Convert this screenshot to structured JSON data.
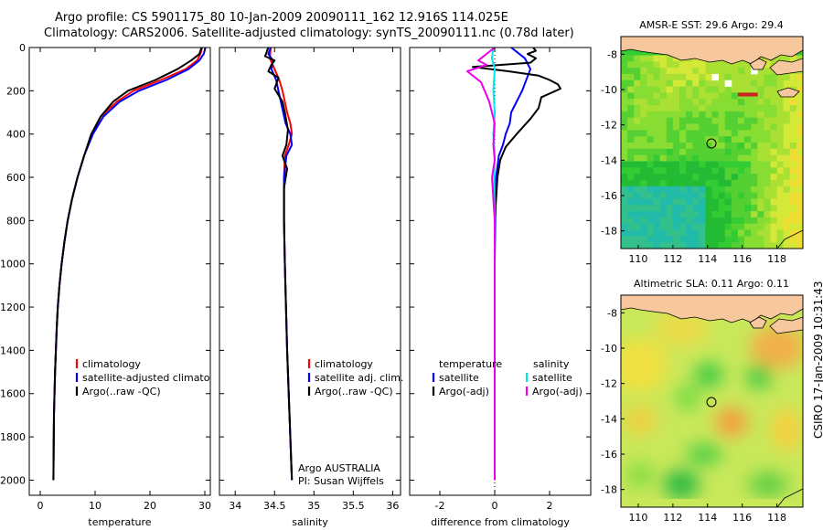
{
  "title": {
    "line1": "Argo profile: CS 5901175_80 10-Jan-2009 20090111_162 12.916S 114.025E",
    "line2": "Climatology: CARS2006. Satellite-adjusted climatology: synTS_20090111.nc (0.78d later)"
  },
  "side_label": "CSIRO 17-Jan-2009 10:31:43",
  "colors": {
    "red": "#ff0000",
    "blue": "#0000ff",
    "black": "#000000",
    "cyan": "#00e5ee",
    "magenta": "#ee00ee",
    "land": "#f7c79d"
  },
  "chart_data": [
    {
      "id": "temperature",
      "type": "line",
      "xlabel": "temperature",
      "ylabel": "",
      "xlim": [
        -2,
        31
      ],
      "ylim": [
        2070,
        0
      ],
      "xticks": [
        0,
        10,
        20,
        30
      ],
      "yticks": [
        0,
        200,
        400,
        600,
        800,
        1000,
        1200,
        1400,
        1600,
        1800,
        2000
      ],
      "legend": [
        "climatology",
        "satellite-adjusted climatology",
        "Argo(..raw -QC)"
      ],
      "series": [
        {
          "name": "climatology",
          "color": "red",
          "x": [
            29.5,
            29.2,
            28.6,
            26.5,
            22,
            17,
            14,
            11,
            9.5,
            8,
            6.8,
            5.8,
            5.0,
            4.4,
            3.9,
            3.5,
            3.2,
            3.0,
            2.7,
            2.5,
            2.4
          ],
          "y": [
            0,
            30,
            60,
            100,
            150,
            200,
            250,
            320,
            400,
            500,
            600,
            700,
            800,
            900,
            1000,
            1100,
            1200,
            1300,
            1500,
            1700,
            2000
          ]
        },
        {
          "name": "satellite-adjusted climatology",
          "color": "blue",
          "x": [
            30.1,
            29.8,
            29.0,
            27,
            23,
            18,
            14.5,
            11.5,
            9.6,
            8,
            6.8,
            5.8,
            5.0,
            4.4,
            3.9,
            3.5,
            3.2,
            3.0,
            2.7,
            2.5,
            2.4
          ],
          "y": [
            0,
            30,
            60,
            100,
            150,
            200,
            250,
            320,
            400,
            500,
            600,
            700,
            800,
            900,
            1000,
            1100,
            1200,
            1300,
            1500,
            1700,
            2000
          ]
        },
        {
          "name": "Argo(..raw -QC)",
          "color": "black",
          "x": [
            29.4,
            29.0,
            27.5,
            25,
            21,
            16,
            13.3,
            11,
            9.3,
            8,
            6.8,
            5.8,
            5.0,
            4.4,
            3.9,
            3.5,
            3.2,
            3.0,
            2.7,
            2.5,
            2.4
          ],
          "y": [
            0,
            30,
            60,
            100,
            150,
            200,
            250,
            320,
            400,
            500,
            600,
            700,
            800,
            900,
            1000,
            1100,
            1200,
            1300,
            1500,
            1700,
            2000
          ]
        }
      ]
    },
    {
      "id": "salinity",
      "type": "line",
      "xlabel": "salinity",
      "xlim": [
        33.8,
        36.1
      ],
      "ylim": [
        2070,
        0
      ],
      "xticks": [
        34,
        34.5,
        35,
        35.5,
        36
      ],
      "legend": [
        "climatology",
        "satellite adj. clim.",
        "Argo(..raw -QC)"
      ],
      "annotation": [
        "Argo AUSTRALIA",
        "PI: Susan Wijffels"
      ],
      "series": [
        {
          "name": "climatology",
          "color": "red",
          "x": [
            34.45,
            34.44,
            34.5,
            34.56,
            34.6,
            34.66,
            34.7,
            34.72,
            34.68,
            34.63,
            34.62,
            34.62,
            34.63,
            34.66,
            34.69,
            34.72
          ],
          "y": [
            0,
            50,
            100,
            150,
            200,
            300,
            350,
            400,
            450,
            500,
            600,
            800,
            1000,
            1400,
            1700,
            2000
          ]
        },
        {
          "name": "satellite adj. clim.",
          "color": "blue",
          "x": [
            34.45,
            34.42,
            34.48,
            34.46,
            34.52,
            34.58,
            34.64,
            34.7,
            34.72,
            34.65,
            34.62,
            34.62,
            34.63,
            34.66,
            34.69,
            34.72
          ],
          "y": [
            0,
            30,
            60,
            100,
            150,
            250,
            350,
            400,
            450,
            500,
            600,
            800,
            1000,
            1400,
            1700,
            2000
          ]
        },
        {
          "name": "Argo(..raw -QC)",
          "color": "black",
          "x": [
            34.42,
            34.4,
            34.38,
            34.5,
            34.46,
            34.42,
            34.55,
            34.5,
            34.6,
            34.63,
            34.67,
            34.65,
            34.6,
            34.66,
            34.62,
            34.62,
            34.63,
            34.66,
            34.69,
            34.72
          ],
          "y": [
            0,
            20,
            40,
            60,
            80,
            110,
            140,
            190,
            250,
            300,
            380,
            450,
            500,
            560,
            650,
            800,
            1000,
            1400,
            1700,
            2000
          ]
        }
      ]
    },
    {
      "id": "difference",
      "type": "line",
      "xlabel": "difference from climatology",
      "xlim": [
        -3.1,
        3.5
      ],
      "ylim": [
        2070,
        0
      ],
      "xticks": [
        -2,
        0,
        2
      ],
      "legend_left_title": "temperature",
      "legend_right_title": "salinity",
      "legend_left": [
        "satellite",
        "Argo(-adj)"
      ],
      "legend_right": [
        "satellite",
        "Argo(-adj)"
      ],
      "series": [
        {
          "name": "temperature satellite",
          "color": "blue",
          "x": [
            0.6,
            0.8,
            1.1,
            1.3,
            1.0,
            0.6,
            0.55,
            0.4,
            0.3,
            0.15,
            0.05,
            0.02,
            0.0,
            0.0,
            0.0
          ],
          "y": [
            0,
            20,
            50,
            100,
            200,
            300,
            350,
            400,
            450,
            500,
            600,
            800,
            1000,
            1500,
            2000
          ]
        },
        {
          "name": "temperature Argo(-adj)",
          "color": "black",
          "x": [
            1.4,
            1.5,
            1.2,
            1.5,
            1.3,
            -0.8,
            0.5,
            1.6,
            2.0,
            2.3,
            2.4,
            1.7,
            1.6,
            1.3,
            0.8,
            0.4,
            0.2,
            0.1,
            0.0,
            0.0,
            0.0
          ],
          "y": [
            0,
            15,
            30,
            50,
            70,
            90,
            110,
            130,
            150,
            170,
            190,
            230,
            280,
            330,
            400,
            460,
            520,
            600,
            800,
            1200,
            2000
          ]
        },
        {
          "name": "salinity satellite",
          "color": "cyan",
          "x": [
            -0.05,
            -0.1,
            0.0,
            -0.05,
            0.0,
            -0.05,
            0.0,
            -0.02,
            0.0,
            0.0,
            0.0
          ],
          "y": [
            0,
            50,
            100,
            200,
            300,
            400,
            500,
            600,
            800,
            1200,
            2000
          ]
        },
        {
          "name": "salinity Argo(-adj)",
          "color": "magenta",
          "x": [
            0.0,
            -0.6,
            -0.3,
            -1.0,
            -0.5,
            -0.2,
            0.0,
            -0.05,
            0.0,
            -0.1,
            0.0,
            0.0,
            0.0
          ],
          "y": [
            0,
            60,
            80,
            110,
            160,
            250,
            350,
            450,
            520,
            600,
            800,
            1200,
            2000
          ]
        }
      ]
    },
    {
      "id": "sst_map",
      "type": "heatmap",
      "title": "AMSR-E SST: 29.6  Argo: 29.4",
      "xlim": [
        109,
        119.5
      ],
      "ylim": [
        -19,
        -7
      ],
      "xticks": [
        110,
        112,
        114,
        116,
        118
      ],
      "yticks": [
        -8,
        -10,
        -12,
        -14,
        -16,
        -18
      ],
      "marker": {
        "lon": 114.025,
        "lat": -12.916
      }
    },
    {
      "id": "sla_map",
      "type": "heatmap",
      "title": "Altimetric SLA: 0.11  Argo: 0.11",
      "xlim": [
        109,
        119.5
      ],
      "ylim": [
        -19,
        -7
      ],
      "xticks": [
        110,
        112,
        114,
        116,
        118
      ],
      "yticks": [
        -8,
        -10,
        -12,
        -14,
        -16,
        -18
      ],
      "marker": {
        "lon": 114.025,
        "lat": -12.916
      }
    }
  ]
}
